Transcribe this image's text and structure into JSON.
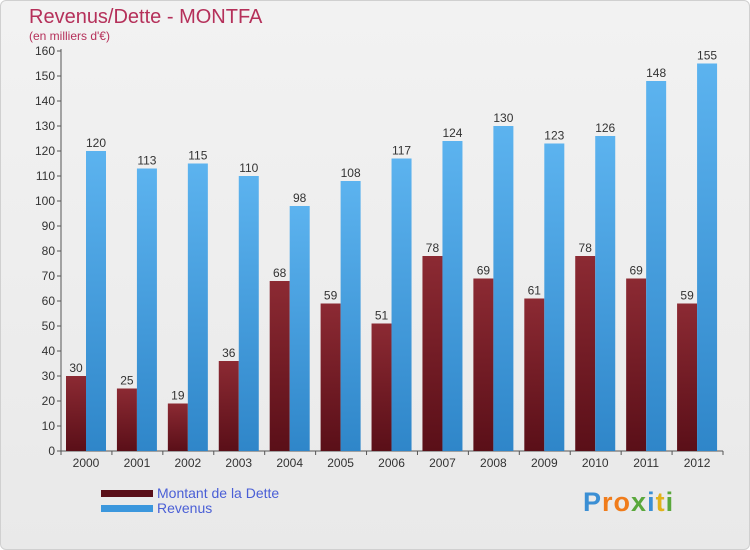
{
  "header": {
    "title": "Revenus/Dette - MONTFA",
    "subtitle": "(en milliers d'€)"
  },
  "logo": {
    "letters": [
      {
        "ch": "P",
        "color": "#3b8fd4"
      },
      {
        "ch": "r",
        "color": "#f07c1b"
      },
      {
        "ch": "o",
        "color": "#f07c1b"
      },
      {
        "ch": "x",
        "color": "#5aa83c"
      },
      {
        "ch": "i",
        "color": "#3b8fd4"
      },
      {
        "ch": "t",
        "color": "#e2b21b"
      },
      {
        "ch": "i",
        "color": "#5aa83c"
      }
    ]
  },
  "chart_data": {
    "type": "bar",
    "title": "Revenus/Dette - MONTFA",
    "subtitle": "(en milliers d'€)",
    "categories": [
      "2000",
      "2001",
      "2002",
      "2003",
      "2004",
      "2005",
      "2006",
      "2007",
      "2008",
      "2009",
      "2010",
      "2011",
      "2012"
    ],
    "series": [
      {
        "name": "Montant de la Dette",
        "color": "#7a1e28",
        "values": [
          30,
          25,
          19,
          36,
          68,
          59,
          51,
          78,
          69,
          61,
          78,
          69,
          59
        ]
      },
      {
        "name": "Revenus",
        "color": "#4aa3e6",
        "values": [
          120,
          113,
          115,
          110,
          98,
          108,
          117,
          124,
          130,
          123,
          126,
          148,
          155
        ]
      }
    ],
    "ylim": [
      0,
      160
    ],
    "yticks": [
      0,
      10,
      20,
      30,
      40,
      50,
      60,
      70,
      80,
      90,
      100,
      110,
      120,
      130,
      140,
      150,
      160
    ],
    "grid": false,
    "legend": "bottom-left"
  }
}
